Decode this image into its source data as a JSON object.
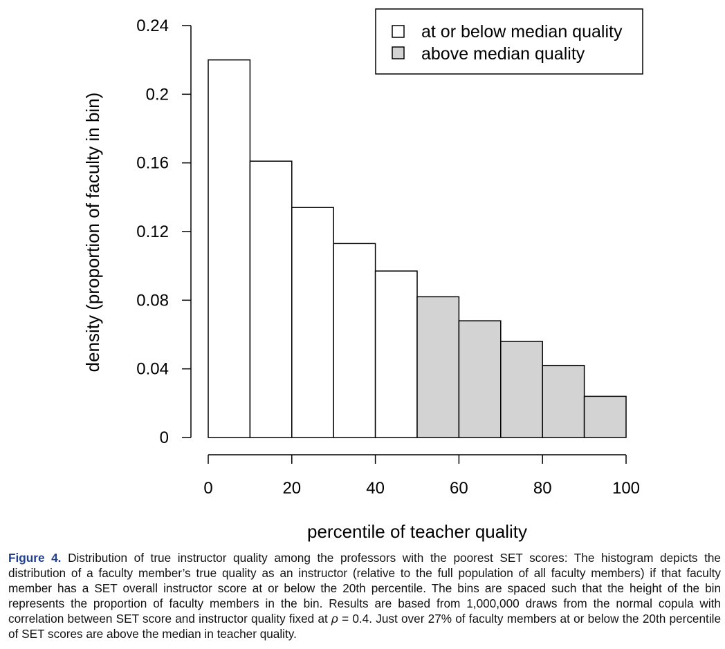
{
  "chart_data": {
    "type": "bar",
    "histogram": true,
    "bin_edges": [
      0,
      10,
      20,
      30,
      40,
      50,
      60,
      70,
      80,
      90,
      100
    ],
    "values": [
      0.22,
      0.161,
      0.134,
      0.113,
      0.097,
      0.082,
      0.068,
      0.056,
      0.042,
      0.024
    ],
    "groups": [
      "below",
      "below",
      "below",
      "below",
      "below",
      "above",
      "above",
      "above",
      "above",
      "above"
    ],
    "xlabel": "percentile of teacher quality",
    "ylabel": "density (proportion of faculty in bin)",
    "xlim": [
      0,
      100
    ],
    "ylim": [
      0,
      0.24
    ],
    "xticks": [
      0,
      20,
      40,
      60,
      80,
      100
    ],
    "xtick_labels": [
      "0",
      "20",
      "40",
      "60",
      "80",
      "100"
    ],
    "yticks": [
      0,
      0.04,
      0.08,
      0.12,
      0.16,
      0.2,
      0.24
    ],
    "ytick_labels": [
      "0",
      "0.04",
      "0.08",
      "0.12",
      "0.16",
      "0.2",
      "0.24"
    ],
    "legend": {
      "position": "top-right",
      "entries": [
        {
          "key": "below",
          "label": "at or below median quality",
          "color": "#ffffff"
        },
        {
          "key": "above",
          "label": "above median quality",
          "color": "#d3d3d3"
        }
      ]
    },
    "grid": false
  },
  "caption": {
    "label": "Figure 4.",
    "text_1": "Distribution of true instructor quality among the professors with the poorest SET scores: The histogram depicts the distribution of a faculty member’s true quality as an instructor (relative to the full population of all faculty members) if that faculty member has a SET overall instructor score at or below the 20th percentile. The bins are spaced such that the height of the bin represents the proportion of faculty members in the bin. Results are based from 1,000,000 draws from the normal copula with correlation between SET score and instructor quality fixed at ",
    "rho": "ρ",
    "rho_value": " = 0.4",
    "text_2": ". Just over 27% of faculty members at or below the 20th percentile of SET scores are above the median in teacher quality."
  }
}
